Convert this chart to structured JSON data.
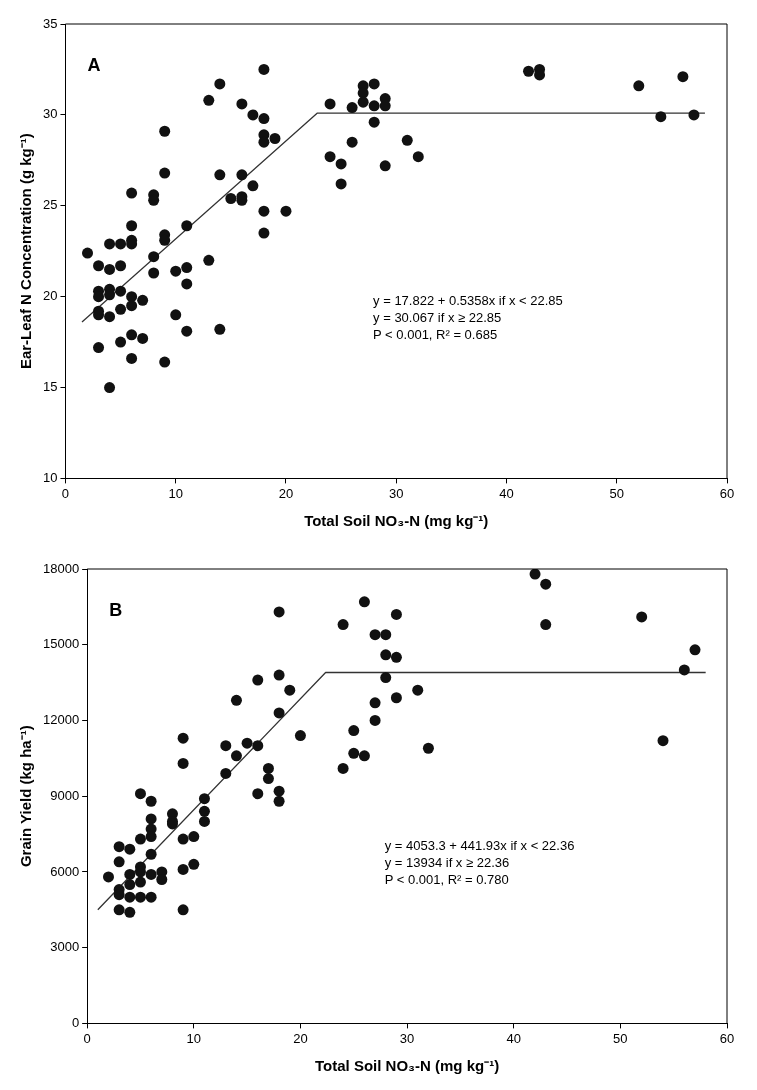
{
  "chart_data": [
    {
      "type": "scatter",
      "xlabel": "Total Soil NO₃-N (mg kg⁻¹)",
      "ylabel": "Ear-Leaf N Concentration (g kg⁻¹)",
      "xlim": [
        0,
        60
      ],
      "xticks": [
        0,
        10,
        20,
        30,
        40,
        50,
        60
      ],
      "ylim": [
        10,
        35
      ],
      "yticks": [
        10,
        15,
        20,
        25,
        30,
        35
      ],
      "grid": false,
      "legend": false,
      "annotations": [
        "A",
        "y = 17.822 + 0.5358x if x < 22.85",
        "y = 30.067 if x ≥ 22.85",
        "P < 0.001, R² = 0.685"
      ],
      "series": [
        {
          "type": "scatter",
          "marker": "circle",
          "color": "#111111",
          "x": [
            2,
            3,
            3,
            3,
            3,
            3,
            3,
            4,
            4,
            4,
            4,
            4,
            4,
            5,
            5,
            5,
            5,
            5,
            6,
            6,
            6,
            6,
            6,
            6,
            6,
            6,
            7,
            7,
            8,
            8,
            8,
            8,
            9,
            9,
            9,
            9,
            9,
            10,
            10,
            11,
            11,
            11,
            11,
            13,
            13,
            14,
            14,
            14,
            15,
            16,
            16,
            16,
            16,
            17,
            17,
            18,
            18,
            18,
            18,
            18,
            18,
            19,
            20,
            24,
            24,
            25,
            25,
            26,
            26,
            27,
            27,
            27,
            28,
            28,
            28,
            29,
            29,
            29,
            31,
            32,
            42,
            43,
            43,
            52,
            54,
            56,
            57
          ],
          "values": [
            22.4,
            21.7,
            20.3,
            20,
            19.2,
            19,
            17.2,
            22.9,
            21.5,
            20.4,
            20.1,
            18.9,
            15,
            22.9,
            21.7,
            20.3,
            19.3,
            17.5,
            25.7,
            23.9,
            23.1,
            22.9,
            20,
            19.5,
            17.9,
            16.6,
            19.8,
            17.7,
            25.6,
            25.3,
            22.2,
            21.3,
            29.1,
            26.8,
            23.4,
            23.1,
            16.4,
            21.4,
            19,
            23.9,
            21.6,
            20.7,
            18.1,
            30.8,
            22,
            31.7,
            26.7,
            18.2,
            25.4,
            30.6,
            26.7,
            25.5,
            25.3,
            30,
            26.1,
            32.5,
            29.8,
            28.9,
            28.5,
            24.7,
            23.5,
            28.7,
            24.7,
            30.6,
            27.7,
            27.3,
            26.2,
            30.4,
            28.5,
            31.6,
            31.2,
            30.7,
            31.7,
            30.5,
            29.6,
            30.9,
            30.5,
            27.2,
            28.6,
            27.7,
            32.4,
            32.5,
            32.2,
            31.6,
            29.9,
            32.1,
            30
          ]
        },
        {
          "type": "line",
          "color": "#333333",
          "x": [
            1.5,
            22.85,
            58
          ],
          "values": [
            18.6,
            30.1,
            30.1
          ]
        }
      ]
    },
    {
      "type": "scatter",
      "xlabel": "Total Soil NO₃-N (mg kg⁻¹)",
      "ylabel": "Grain Yield (kg ha⁻¹)",
      "xlim": [
        0,
        60
      ],
      "xticks": [
        0,
        10,
        20,
        30,
        40,
        50,
        60
      ],
      "ylim": [
        0,
        18000
      ],
      "yticks": [
        0,
        3000,
        6000,
        9000,
        12000,
        15000,
        18000
      ],
      "grid": false,
      "legend": false,
      "annotations": [
        "B",
        "y = 4053.3 + 441.93x if x < 22.36",
        "y = 13934 if x ≥ 22.36",
        "P < 0.001, R² = 0.780"
      ],
      "series": [
        {
          "type": "scatter",
          "marker": "circle",
          "color": "#111111",
          "x": [
            2,
            3,
            3,
            3,
            3,
            3,
            4,
            4,
            4,
            4,
            4,
            5,
            5,
            5,
            5,
            5,
            5,
            6,
            6,
            6,
            6,
            6,
            6,
            6,
            7,
            7,
            8,
            8,
            8,
            9,
            9,
            9,
            9,
            9,
            10,
            10,
            11,
            11,
            11,
            13,
            13,
            14,
            14,
            15,
            16,
            16,
            16,
            17,
            17,
            18,
            18,
            18,
            18,
            18,
            19,
            20,
            24,
            24,
            25,
            25,
            26,
            26,
            27,
            27,
            27,
            28,
            28,
            28,
            29,
            29,
            29,
            31,
            32,
            42,
            43,
            43,
            52,
            54,
            56,
            57
          ],
          "values": [
            5800,
            7000,
            6400,
            5300,
            5100,
            4500,
            6900,
            5900,
            5500,
            5000,
            4400,
            9100,
            7300,
            6200,
            6000,
            5600,
            5000,
            8800,
            8100,
            7700,
            7400,
            6700,
            5900,
            5000,
            6000,
            5700,
            8300,
            8000,
            7900,
            11300,
            10300,
            7300,
            6100,
            4500,
            7400,
            6300,
            8900,
            8400,
            8000,
            11000,
            9900,
            12800,
            10600,
            11100,
            13600,
            11000,
            9100,
            10100,
            9700,
            16300,
            13800,
            12300,
            9200,
            8800,
            13200,
            11400,
            15800,
            10100,
            11600,
            10700,
            16700,
            10600,
            15400,
            12700,
            12000,
            15400,
            14600,
            13700,
            16200,
            14500,
            12900,
            13200,
            10900,
            17800,
            17400,
            15800,
            16100,
            11200,
            14000,
            14800
          ]
        },
        {
          "type": "line",
          "color": "#333333",
          "x": [
            1,
            22.36,
            58
          ],
          "values": [
            4500,
            13900,
            13900
          ]
        }
      ]
    }
  ]
}
